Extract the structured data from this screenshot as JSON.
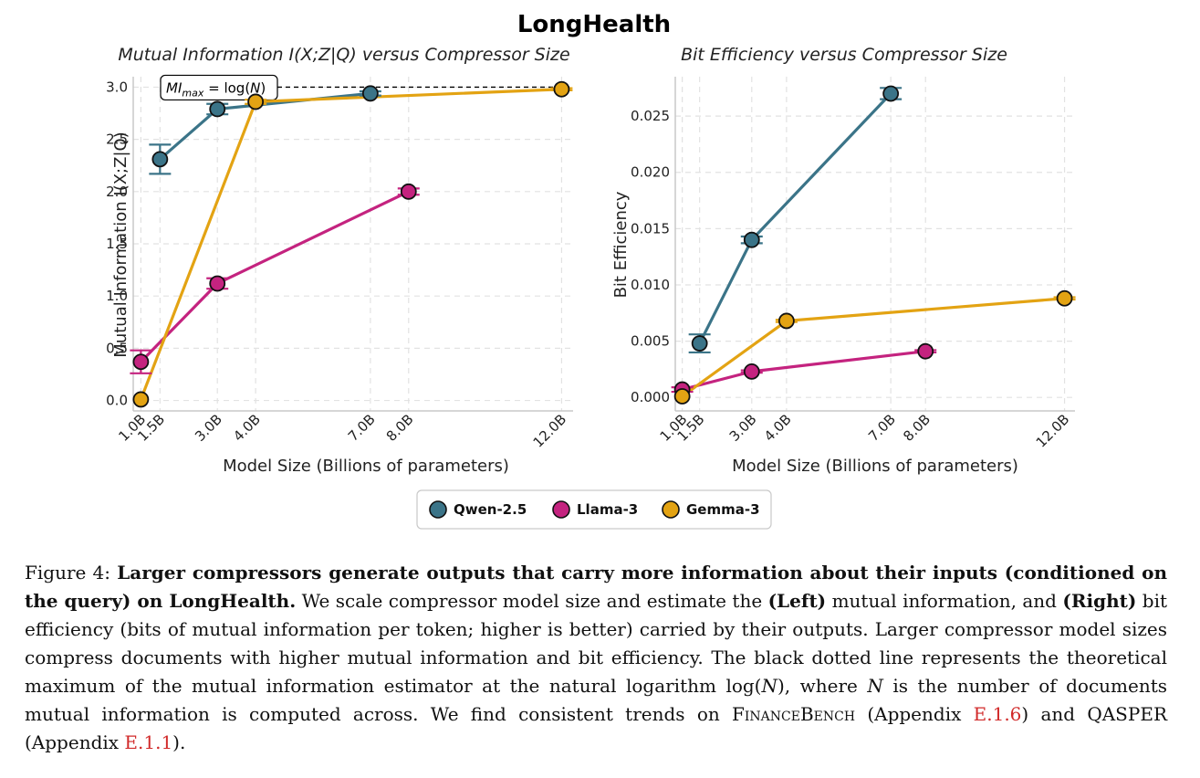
{
  "figure": {
    "suptitle": "LongHealth",
    "legend": {
      "entries": [
        {
          "name": "Qwen-2.5",
          "color": "#3b7488"
        },
        {
          "name": "Llama-3",
          "color": "#c4237f"
        },
        {
          "name": "Gemma-3",
          "color": "#e3a313"
        }
      ]
    }
  },
  "chart_data": [
    {
      "type": "line",
      "title": "Mutual Information I(X;Z|Q) versus Compressor Size",
      "xlabel": "Model Size (Billions of parameters)",
      "ylabel": "Mutual Information I(X;Z|Q)",
      "xlim": [
        0.8,
        12.3
      ],
      "ylim": [
        -0.1,
        3.1
      ],
      "grid": true,
      "xticks": [
        1.0,
        1.5,
        3.0,
        4.0,
        7.0,
        8.0,
        12.0
      ],
      "xtick_labels": [
        "1.0B",
        "1.5B",
        "3.0B",
        "4.0B",
        "7.0B",
        "8.0B",
        "12.0B"
      ],
      "yticks": [
        0.0,
        0.5,
        1.0,
        1.5,
        2.0,
        2.5,
        3.0
      ],
      "ytick_labels": [
        "0.0",
        "0.5",
        "1.0",
        "1.5",
        "2.0",
        "2.5",
        "3.0"
      ],
      "reference_line": {
        "y": 3.0,
        "style": "dashed",
        "color": "#000000",
        "label_math": {
          "base": "MI",
          "sub": "max",
          "rhs_prefix": " = log(",
          "rhs_var": "N",
          "rhs_suffix": ")"
        }
      },
      "series": [
        {
          "name": "Qwen-2.5",
          "color": "#3b7488",
          "x": [
            1.5,
            3.0,
            7.0
          ],
          "y": [
            2.31,
            2.79,
            2.94
          ],
          "err": [
            0.14,
            0.05,
            0.02
          ]
        },
        {
          "name": "Llama-3",
          "color": "#c4237f",
          "x": [
            1.0,
            3.0,
            8.0
          ],
          "y": [
            0.37,
            1.12,
            2.0
          ],
          "err": [
            0.11,
            0.05,
            0.03
          ]
        },
        {
          "name": "Gemma-3",
          "color": "#e3a313",
          "x": [
            1.0,
            4.0,
            12.0
          ],
          "y": [
            0.01,
            2.86,
            2.98
          ],
          "err": [
            0.0,
            0.02,
            0.01
          ]
        }
      ]
    },
    {
      "type": "line",
      "title": "Bit Efficiency versus Compressor Size",
      "xlabel": "Model Size (Billions of parameters)",
      "ylabel": "Bit Efficiency",
      "xlim": [
        0.8,
        12.3
      ],
      "ylim": [
        -0.0012,
        0.0285
      ],
      "grid": true,
      "xticks": [
        1.0,
        1.5,
        3.0,
        4.0,
        7.0,
        8.0,
        12.0
      ],
      "xtick_labels": [
        "1.0B",
        "1.5B",
        "3.0B",
        "4.0B",
        "7.0B",
        "8.0B",
        "12.0B"
      ],
      "yticks": [
        0.0,
        0.005,
        0.01,
        0.015,
        0.02,
        0.025
      ],
      "ytick_labels": [
        "0.000",
        "0.005",
        "0.010",
        "0.015",
        "0.020",
        "0.025"
      ],
      "series": [
        {
          "name": "Qwen-2.5",
          "color": "#3b7488",
          "x": [
            1.5,
            3.0,
            7.0
          ],
          "y": [
            0.0048,
            0.014,
            0.027
          ],
          "err": [
            0.0008,
            0.0003,
            0.0005
          ]
        },
        {
          "name": "Llama-3",
          "color": "#c4237f",
          "x": [
            1.0,
            3.0,
            8.0
          ],
          "y": [
            0.0007,
            0.0023,
            0.0041
          ],
          "err": [
            0.0002,
            0.0001,
            0.0001
          ]
        },
        {
          "name": "Gemma-3",
          "color": "#e3a313",
          "x": [
            1.0,
            4.0,
            12.0
          ],
          "y": [
            0.0001,
            0.0068,
            0.0088
          ],
          "err": [
            0.0,
            0.0001,
            0.0001
          ]
        }
      ]
    }
  ],
  "caption": {
    "label": "Figure 4:",
    "bold_lead": "Larger compressors generate outputs that carry more information about their inputs (conditioned on the query) on LongHealth.",
    "seg1": "We scale compressor model size and estimate the",
    "left": "(Left)",
    "seg2": "mutual information, and",
    "right": "(Right)",
    "seg3": "bit efficiency (bits of mutual information per token; higher is better) carried by their outputs. Larger compressor model sizes compress documents with higher mutual information and bit efficiency. The black dotted line represents the theoretical maximum of the mutual information estimator at the natural logarithm log(",
    "var_n": "N",
    "seg4": "), where",
    "var_n2": "N",
    "seg5": "is the number of documents mutual information is computed across. We find consistent trends on",
    "financebench": "FinanceBench",
    "seg6": "(Appendix",
    "ref1": "E.1.6",
    "seg7": ") and QASPER (Appendix",
    "ref2": "E.1.1",
    "seg8": ")."
  }
}
